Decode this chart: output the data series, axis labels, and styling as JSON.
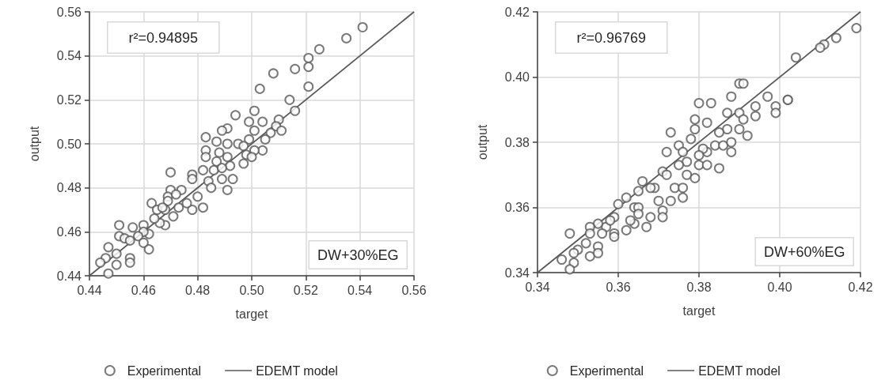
{
  "chart_data": [
    {
      "type": "scatter",
      "xlabel": "target",
      "ylabel": "output",
      "xlim": [
        0.44,
        0.56
      ],
      "ylim": [
        0.44,
        0.56
      ],
      "xticks": [
        0.44,
        0.46,
        0.48,
        {
          "value": 0.5,
          "label": "0.50"
        },
        0.52,
        0.54,
        0.56
      ],
      "yticks": [
        0.44,
        0.46,
        0.48,
        {
          "value": 0.5,
          "label": "0.50"
        },
        0.52,
        0.54,
        0.56
      ],
      "grid": true,
      "legend": "bottom",
      "annotations": [
        "r²=0.94895",
        "DW+30%EG"
      ],
      "series": [
        {
          "name": "Experimental",
          "marker": "circle",
          "color": "#595959",
          "x": [
            0.541,
            0.535,
            0.525,
            0.521,
            0.521,
            0.516,
            0.508,
            0.521,
            0.503,
            0.514,
            0.516,
            0.494,
            0.501,
            0.51,
            0.504,
            0.499,
            0.491,
            0.489,
            0.509,
            0.511,
            0.507,
            0.501,
            0.505,
            0.499,
            0.483,
            0.487,
            0.491,
            0.495,
            0.497,
            0.483,
            0.504,
            0.488,
            0.501,
            0.483,
            0.491,
            0.498,
            0.5,
            0.487,
            0.492,
            0.497,
            0.482,
            0.486,
            0.489,
            0.493,
            0.489,
            0.484,
            0.478,
            0.478,
            0.491,
            0.485,
            0.47,
            0.474,
            0.48,
            0.482,
            0.478,
            0.476,
            0.47,
            0.469,
            0.469,
            0.472,
            0.463,
            0.468,
            0.471,
            0.465,
            0.473,
            0.468,
            0.466,
            0.46,
            0.462,
            0.46,
            0.458,
            0.46,
            0.462,
            0.456,
            0.451,
            0.451,
            0.453,
            0.455,
            0.447,
            0.45,
            0.455,
            0.455,
            0.45,
            0.446,
            0.444,
            0.447,
            0.467,
            0.464
          ],
          "values": [
            0.553,
            0.548,
            0.543,
            0.539,
            0.535,
            0.534,
            0.532,
            0.526,
            0.525,
            0.52,
            0.515,
            0.513,
            0.515,
            0.511,
            0.51,
            0.51,
            0.507,
            0.506,
            0.508,
            0.506,
            0.505,
            0.506,
            0.502,
            0.502,
            0.503,
            0.501,
            0.5,
            0.5,
            0.499,
            0.497,
            0.497,
            0.496,
            0.497,
            0.494,
            0.494,
            0.495,
            0.494,
            0.492,
            0.49,
            0.491,
            0.488,
            0.488,
            0.489,
            0.484,
            0.484,
            0.483,
            0.486,
            0.484,
            0.479,
            0.48,
            0.487,
            0.479,
            0.476,
            0.471,
            0.47,
            0.473,
            0.479,
            0.476,
            0.474,
            0.477,
            0.473,
            0.47,
            0.467,
            0.47,
            0.471,
            0.463,
            0.464,
            0.463,
            0.459,
            0.46,
            0.458,
            0.455,
            0.452,
            0.462,
            0.463,
            0.458,
            0.457,
            0.456,
            0.453,
            0.45,
            0.448,
            0.446,
            0.445,
            0.448,
            0.446,
            0.441,
            0.471,
            0.466
          ]
        },
        {
          "name": "EDEMT model",
          "type": "line",
          "marker": "none",
          "color": "#595959",
          "x": [
            0.44,
            0.56
          ],
          "values": [
            0.44,
            0.56
          ]
        }
      ]
    },
    {
      "type": "scatter",
      "xlabel": "target",
      "ylabel": "output",
      "xlim": [
        0.34,
        0.42
      ],
      "ylim": [
        0.34,
        0.42
      ],
      "xticks": [
        0.34,
        0.36,
        0.38,
        {
          "value": 0.4,
          "label": "0.40"
        },
        0.42
      ],
      "yticks": [
        0.34,
        0.36,
        0.38,
        {
          "value": 0.4,
          "label": "0.40"
        },
        0.42
      ],
      "grid": true,
      "legend": "bottom",
      "annotations": [
        "r²=0.96769",
        "DW+60%EG"
      ],
      "series": [
        {
          "name": "Experimental",
          "marker": "circle",
          "color": "#595959",
          "x": [
            0.419,
            0.414,
            0.411,
            0.41,
            0.404,
            0.39,
            0.391,
            0.388,
            0.397,
            0.402,
            0.402,
            0.394,
            0.399,
            0.399,
            0.383,
            0.38,
            0.387,
            0.39,
            0.394,
            0.391,
            0.379,
            0.382,
            0.379,
            0.387,
            0.39,
            0.392,
            0.385,
            0.373,
            0.378,
            0.375,
            0.376,
            0.384,
            0.386,
            0.388,
            0.388,
            0.382,
            0.381,
            0.372,
            0.38,
            0.377,
            0.375,
            0.385,
            0.38,
            0.382,
            0.371,
            0.372,
            0.377,
            0.379,
            0.366,
            0.369,
            0.368,
            0.374,
            0.376,
            0.376,
            0.373,
            0.37,
            0.365,
            0.371,
            0.371,
            0.368,
            0.367,
            0.364,
            0.362,
            0.365,
            0.364,
            0.365,
            0.363,
            0.362,
            0.36,
            0.359,
            0.359,
            0.359,
            0.357,
            0.356,
            0.355,
            0.353,
            0.353,
            0.352,
            0.353,
            0.355,
            0.355,
            0.348,
            0.35,
            0.349,
            0.346,
            0.349,
            0.348,
            0.358
          ],
          "values": [
            0.415,
            0.412,
            0.41,
            0.409,
            0.406,
            0.398,
            0.398,
            0.394,
            0.394,
            0.393,
            0.393,
            0.391,
            0.391,
            0.389,
            0.392,
            0.392,
            0.389,
            0.389,
            0.388,
            0.387,
            0.387,
            0.386,
            0.384,
            0.384,
            0.384,
            0.382,
            0.383,
            0.383,
            0.381,
            0.379,
            0.377,
            0.379,
            0.379,
            0.38,
            0.377,
            0.377,
            0.378,
            0.377,
            0.376,
            0.374,
            0.373,
            0.372,
            0.373,
            0.373,
            0.371,
            0.37,
            0.37,
            0.369,
            0.368,
            0.366,
            0.366,
            0.366,
            0.366,
            0.363,
            0.362,
            0.362,
            0.365,
            0.359,
            0.357,
            0.357,
            0.354,
            0.36,
            0.363,
            0.36,
            0.355,
            0.358,
            0.356,
            0.353,
            0.361,
            0.357,
            0.352,
            0.351,
            0.354,
            0.352,
            0.355,
            0.354,
            0.352,
            0.349,
            0.345,
            0.348,
            0.346,
            0.352,
            0.347,
            0.346,
            0.344,
            0.343,
            0.341,
            0.356
          ]
        },
        {
          "name": "EDEMT model",
          "type": "line",
          "marker": "none",
          "color": "#595959",
          "x": [
            0.34,
            0.42
          ],
          "values": [
            0.34,
            0.42
          ]
        }
      ]
    }
  ]
}
